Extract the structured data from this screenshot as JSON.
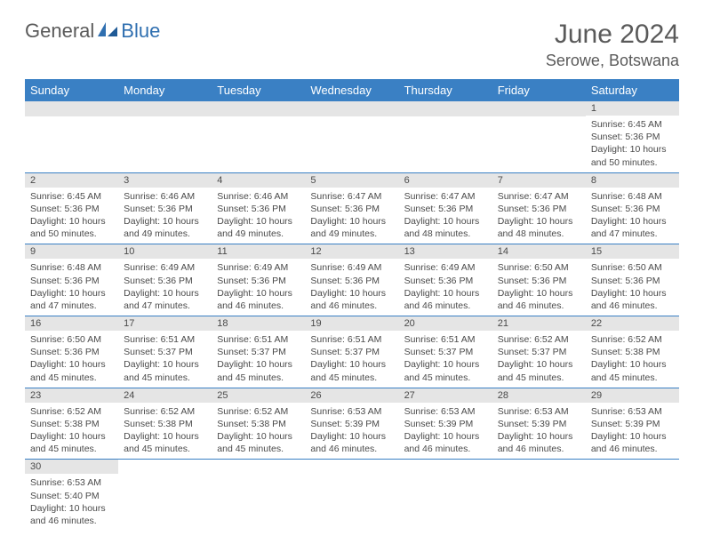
{
  "logo": {
    "text1": "General",
    "text2": "Blue"
  },
  "title": "June 2024",
  "location": "Serowe, Botswana",
  "headers": [
    "Sunday",
    "Monday",
    "Tuesday",
    "Wednesday",
    "Thursday",
    "Friday",
    "Saturday"
  ],
  "colors": {
    "header_bg": "#3a80c4",
    "header_text": "#ffffff",
    "daynum_bg": "#e5e5e5",
    "text": "#4a4a4a",
    "row_divider": "#3a80c4",
    "logo_gray": "#5a5a5a",
    "logo_blue": "#2f6fb0"
  },
  "typography": {
    "title_fontsize": 30,
    "location_fontsize": 18,
    "header_fontsize": 13,
    "daynum_fontsize": 11,
    "body_fontsize": 10.5
  },
  "startOffset": 6,
  "days": [
    {
      "n": 1,
      "sunrise": "6:45 AM",
      "sunset": "5:36 PM",
      "daylight": "10 hours and 50 minutes."
    },
    {
      "n": 2,
      "sunrise": "6:45 AM",
      "sunset": "5:36 PM",
      "daylight": "10 hours and 50 minutes."
    },
    {
      "n": 3,
      "sunrise": "6:46 AM",
      "sunset": "5:36 PM",
      "daylight": "10 hours and 49 minutes."
    },
    {
      "n": 4,
      "sunrise": "6:46 AM",
      "sunset": "5:36 PM",
      "daylight": "10 hours and 49 minutes."
    },
    {
      "n": 5,
      "sunrise": "6:47 AM",
      "sunset": "5:36 PM",
      "daylight": "10 hours and 49 minutes."
    },
    {
      "n": 6,
      "sunrise": "6:47 AM",
      "sunset": "5:36 PM",
      "daylight": "10 hours and 48 minutes."
    },
    {
      "n": 7,
      "sunrise": "6:47 AM",
      "sunset": "5:36 PM",
      "daylight": "10 hours and 48 minutes."
    },
    {
      "n": 8,
      "sunrise": "6:48 AM",
      "sunset": "5:36 PM",
      "daylight": "10 hours and 47 minutes."
    },
    {
      "n": 9,
      "sunrise": "6:48 AM",
      "sunset": "5:36 PM",
      "daylight": "10 hours and 47 minutes."
    },
    {
      "n": 10,
      "sunrise": "6:49 AM",
      "sunset": "5:36 PM",
      "daylight": "10 hours and 47 minutes."
    },
    {
      "n": 11,
      "sunrise": "6:49 AM",
      "sunset": "5:36 PM",
      "daylight": "10 hours and 46 minutes."
    },
    {
      "n": 12,
      "sunrise": "6:49 AM",
      "sunset": "5:36 PM",
      "daylight": "10 hours and 46 minutes."
    },
    {
      "n": 13,
      "sunrise": "6:49 AM",
      "sunset": "5:36 PM",
      "daylight": "10 hours and 46 minutes."
    },
    {
      "n": 14,
      "sunrise": "6:50 AM",
      "sunset": "5:36 PM",
      "daylight": "10 hours and 46 minutes."
    },
    {
      "n": 15,
      "sunrise": "6:50 AM",
      "sunset": "5:36 PM",
      "daylight": "10 hours and 46 minutes."
    },
    {
      "n": 16,
      "sunrise": "6:50 AM",
      "sunset": "5:36 PM",
      "daylight": "10 hours and 45 minutes."
    },
    {
      "n": 17,
      "sunrise": "6:51 AM",
      "sunset": "5:37 PM",
      "daylight": "10 hours and 45 minutes."
    },
    {
      "n": 18,
      "sunrise": "6:51 AM",
      "sunset": "5:37 PM",
      "daylight": "10 hours and 45 minutes."
    },
    {
      "n": 19,
      "sunrise": "6:51 AM",
      "sunset": "5:37 PM",
      "daylight": "10 hours and 45 minutes."
    },
    {
      "n": 20,
      "sunrise": "6:51 AM",
      "sunset": "5:37 PM",
      "daylight": "10 hours and 45 minutes."
    },
    {
      "n": 21,
      "sunrise": "6:52 AM",
      "sunset": "5:37 PM",
      "daylight": "10 hours and 45 minutes."
    },
    {
      "n": 22,
      "sunrise": "6:52 AM",
      "sunset": "5:38 PM",
      "daylight": "10 hours and 45 minutes."
    },
    {
      "n": 23,
      "sunrise": "6:52 AM",
      "sunset": "5:38 PM",
      "daylight": "10 hours and 45 minutes."
    },
    {
      "n": 24,
      "sunrise": "6:52 AM",
      "sunset": "5:38 PM",
      "daylight": "10 hours and 45 minutes."
    },
    {
      "n": 25,
      "sunrise": "6:52 AM",
      "sunset": "5:38 PM",
      "daylight": "10 hours and 45 minutes."
    },
    {
      "n": 26,
      "sunrise": "6:53 AM",
      "sunset": "5:39 PM",
      "daylight": "10 hours and 46 minutes."
    },
    {
      "n": 27,
      "sunrise": "6:53 AM",
      "sunset": "5:39 PM",
      "daylight": "10 hours and 46 minutes."
    },
    {
      "n": 28,
      "sunrise": "6:53 AM",
      "sunset": "5:39 PM",
      "daylight": "10 hours and 46 minutes."
    },
    {
      "n": 29,
      "sunrise": "6:53 AM",
      "sunset": "5:39 PM",
      "daylight": "10 hours and 46 minutes."
    },
    {
      "n": 30,
      "sunrise": "6:53 AM",
      "sunset": "5:40 PM",
      "daylight": "10 hours and 46 minutes."
    }
  ],
  "labels": {
    "sunrise": "Sunrise:",
    "sunset": "Sunset:",
    "daylight": "Daylight:"
  }
}
